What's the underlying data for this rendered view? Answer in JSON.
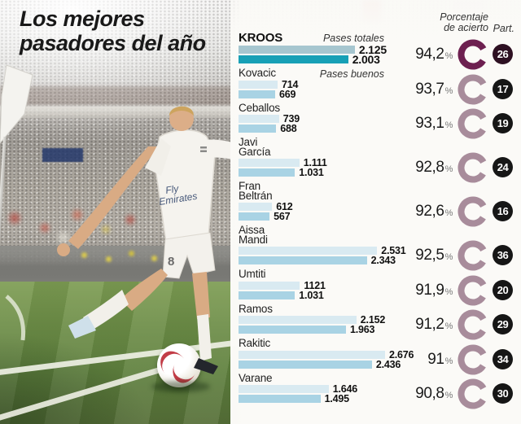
{
  "title": {
    "line1": "Los mejores",
    "line2": "pasadores del año"
  },
  "header": {
    "accuracy_label": "Porcentaje\nde acierto",
    "participation_label": "Part."
  },
  "series_labels": {
    "total": "Pases totales",
    "good": "Pases buenos"
  },
  "photo": {
    "jersey_sponsor_line1": "Fly",
    "jersey_sponsor_line2": "Emirates",
    "shorts_number": "8"
  },
  "colors": {
    "bar_total_highlight": "#a6c6cf",
    "bar_good_highlight": "#17a0b6",
    "bar_total": "#d9eaf1",
    "bar_good": "#a9d3e4",
    "ring_highlight": "#6d2050",
    "ring": "#a88c9b",
    "badge_bg": "#161616",
    "badge_bg_highlight": "#2e1022",
    "badge_text": "#ffffff"
  },
  "chart_data": {
    "type": "bar",
    "orientation": "horizontal",
    "title": "Los mejores pasadores del año",
    "series_names": [
      "Pases totales",
      "Pases buenos"
    ],
    "xmax": 2676,
    "pct_suffix": "%",
    "players": [
      {
        "name": "KROOS",
        "total": 2125,
        "total_label": "2.125",
        "good": 2003,
        "good_label": "2.003",
        "accuracy_pct": 94.2,
        "accuracy_label": "94,2",
        "matches": 26,
        "highlight": true
      },
      {
        "name": "Kovacic",
        "total": 714,
        "total_label": "714",
        "good": 669,
        "good_label": "669",
        "accuracy_pct": 93.7,
        "accuracy_label": "93,7",
        "matches": 17,
        "highlight": false
      },
      {
        "name": "Ceballos",
        "total": 739,
        "total_label": "739",
        "good": 688,
        "good_label": "688",
        "accuracy_pct": 93.1,
        "accuracy_label": "93,1",
        "matches": 19,
        "highlight": false
      },
      {
        "name": "Javi\nGarcía",
        "total": 1111,
        "total_label": "1.111",
        "good": 1031,
        "good_label": "1.031",
        "accuracy_pct": 92.8,
        "accuracy_label": "92,8",
        "matches": 24,
        "highlight": false
      },
      {
        "name": "Fran\nBeltrán",
        "total": 612,
        "total_label": "612",
        "good": 567,
        "good_label": "567",
        "accuracy_pct": 92.6,
        "accuracy_label": "92,6",
        "matches": 16,
        "highlight": false
      },
      {
        "name": "Aissa\nMandi",
        "total": 2531,
        "total_label": "2.531",
        "good": 2343,
        "good_label": "2.343",
        "accuracy_pct": 92.5,
        "accuracy_label": "92,5",
        "matches": 36,
        "highlight": false
      },
      {
        "name": "Umtiti",
        "total": 1121,
        "total_label": "1121",
        "good": 1031,
        "good_label": "1.031",
        "accuracy_pct": 91.9,
        "accuracy_label": "91,9",
        "matches": 20,
        "highlight": false
      },
      {
        "name": "Ramos",
        "total": 2152,
        "total_label": "2.152",
        "good": 1963,
        "good_label": "1.963",
        "accuracy_pct": 91.2,
        "accuracy_label": "91,2",
        "matches": 29,
        "highlight": false
      },
      {
        "name": "Rakitic",
        "total": 2676,
        "total_label": "2.676",
        "good": 2436,
        "good_label": "2.436",
        "accuracy_pct": 91.0,
        "accuracy_label": "91",
        "matches": 34,
        "highlight": false
      },
      {
        "name": "Varane",
        "total": 1646,
        "total_label": "1.646",
        "good": 1495,
        "good_label": "1.495",
        "accuracy_pct": 90.8,
        "accuracy_label": "90,8",
        "matches": 30,
        "highlight": false
      }
    ]
  }
}
